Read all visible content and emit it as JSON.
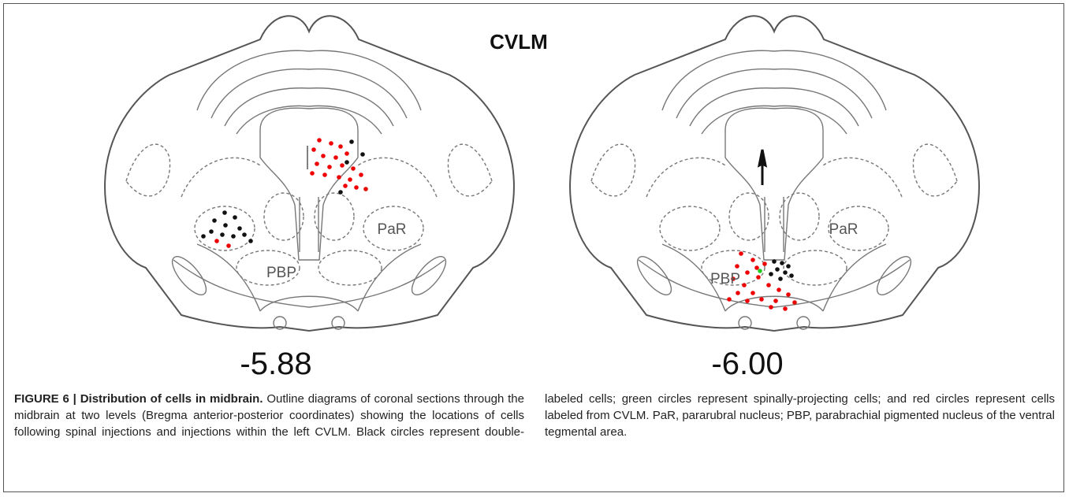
{
  "figure": {
    "title": "CVLM",
    "panels": [
      {
        "level": "-5.88",
        "regions": [
          "PaR",
          "PBP"
        ]
      },
      {
        "level": "-6.00",
        "regions": [
          "PaR",
          "PBP"
        ]
      }
    ]
  },
  "caption": {
    "label": "FIGURE 6 | Distribution of cells in midbrain.",
    "text": "Outline diagrams of coronal sections through the midbrain at two levels (Bregma anterior-posterior coordinates) showing the locations of cells following spinal injections and injections within the left CVLM. Black circles represent double-labeled cells; green circles represent spinally-projecting cells; and red circles represent cells labeled from CVLM. PaR, pararubral nucleus; PBP, parabrachial pigmented nucleus of the ventral tegmental area."
  }
}
